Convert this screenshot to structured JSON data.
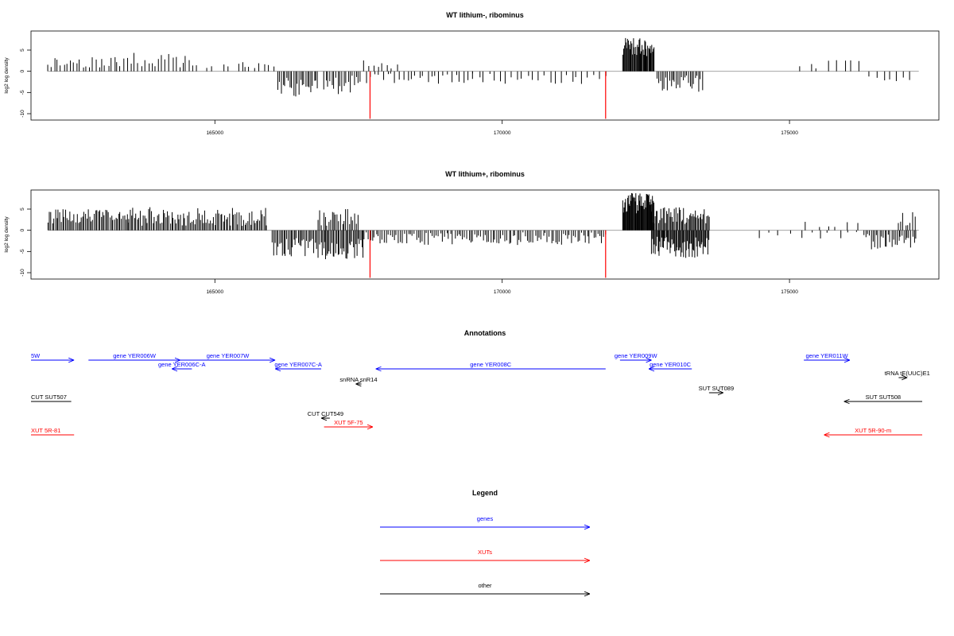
{
  "colors": {
    "genes": "#0000ff",
    "XUTs": "#ff0000",
    "other": "#000000",
    "bars": "#000000",
    "marker": "#ff0000",
    "baseline": "#999999"
  },
  "chart_data": [
    {
      "type": "bar",
      "title": "WT lithium-, ribominus",
      "ylabel": "log2 log density",
      "xlim": [
        161800,
        177600
      ],
      "ylim": [
        -11.5,
        9.5
      ],
      "xticks": [
        165000,
        170000,
        175000
      ],
      "xtick_labels": [
        "165000",
        "170000",
        "175000"
      ],
      "yticks": [
        -10,
        -5,
        0,
        5
      ],
      "ytick_labels": [
        "-10",
        "-5",
        "0",
        "5"
      ],
      "markers": [
        {
          "x": 167700,
          "value": -11.2,
          "color": "#ff0000"
        },
        {
          "x": 171800,
          "value": -11.2,
          "color": "#ff0000"
        }
      ],
      "series": [
        {
          "segments": [
            {
              "x0": 162100,
              "x1": 163300,
              "lo": 0.8,
              "hi": 3.5,
              "step": 55,
              "sign": 1,
              "seed": 11
            },
            {
              "x0": 163300,
              "x1": 164650,
              "lo": 0.8,
              "hi": 4.5,
              "step": 60,
              "sign": 1,
              "seed": 12
            },
            {
              "x0": 164700,
              "x1": 165600,
              "lo": 0.5,
              "hi": 2.5,
              "step": 140,
              "sign": 1,
              "seed": 13
            },
            {
              "x0": 165500,
              "x1": 166050,
              "lo": 0.5,
              "hi": 3.5,
              "step": 90,
              "sign": 1,
              "seed": 14
            },
            {
              "x0": 166100,
              "x1": 166800,
              "lo": 1.5,
              "hi": 6.0,
              "step": 30,
              "sign": -1,
              "seed": 15
            },
            {
              "x0": 166900,
              "x1": 167550,
              "lo": 1.0,
              "hi": 5.5,
              "step": 35,
              "sign": -1,
              "seed": 16
            },
            {
              "x0": 167600,
              "x1": 168200,
              "lo": 0.5,
              "hi": 3.0,
              "step": 80,
              "sign": 1,
              "seed": 17
            },
            {
              "x0": 167650,
              "x1": 169500,
              "lo": 0.5,
              "hi": 3.0,
              "step": 70,
              "sign": -1,
              "seed": 18
            },
            {
              "x0": 169500,
              "x1": 171800,
              "lo": 0.5,
              "hi": 3.0,
              "step": 95,
              "sign": -1,
              "seed": 19
            },
            {
              "x0": 172100,
              "x1": 172650,
              "lo": 3.5,
              "hi": 8.0,
              "step": 14,
              "sign": 1,
              "seed": 20
            },
            {
              "x0": 172700,
              "x1": 173500,
              "lo": 1.0,
              "hi": 5.0,
              "step": 30,
              "sign": -1,
              "seed": 21
            },
            {
              "x0": 175200,
              "x1": 176300,
              "lo": 0.5,
              "hi": 3.0,
              "step": 150,
              "sign": 1,
              "seed": 22
            },
            {
              "x0": 176400,
              "x1": 177150,
              "lo": 0.5,
              "hi": 2.5,
              "step": 120,
              "sign": -1,
              "seed": 23
            }
          ]
        }
      ]
    },
    {
      "type": "bar",
      "title": "WT lithium+, ribominus",
      "ylabel": "log2 log density",
      "xlim": [
        161800,
        177600
      ],
      "ylim": [
        -11.5,
        9.5
      ],
      "xticks": [
        165000,
        170000,
        175000
      ],
      "xtick_labels": [
        "165000",
        "170000",
        "175000"
      ],
      "yticks": [
        -10,
        -5,
        0,
        5
      ],
      "ytick_labels": [
        "-10",
        "-5",
        "0",
        "5"
      ],
      "markers": [
        {
          "x": 167700,
          "value": -11.2,
          "color": "#ff0000"
        },
        {
          "x": 171800,
          "value": -11.2,
          "color": "#ff0000"
        }
      ],
      "series": [
        {
          "segments": [
            {
              "x0": 162100,
              "x1": 163500,
              "lo": 1.5,
              "hi": 5.0,
              "step": 25,
              "sign": 1,
              "seed": 31
            },
            {
              "x0": 163500,
              "x1": 165900,
              "lo": 1.0,
              "hi": 5.5,
              "step": 25,
              "sign": 1,
              "seed": 32
            },
            {
              "x0": 166000,
              "x1": 166900,
              "lo": 1.5,
              "hi": 6.5,
              "step": 25,
              "sign": -1,
              "seed": 33
            },
            {
              "x0": 166800,
              "x1": 167500,
              "lo": 1.0,
              "hi": 5.0,
              "step": 30,
              "sign": 1,
              "seed": 34
            },
            {
              "x0": 166900,
              "x1": 167600,
              "lo": 2.0,
              "hi": 7.0,
              "step": 22,
              "sign": -1,
              "seed": 35
            },
            {
              "x0": 167600,
              "x1": 171800,
              "lo": 0.5,
              "hi": 3.5,
              "step": 35,
              "sign": -1,
              "seed": 36
            },
            {
              "x0": 172100,
              "x1": 172650,
              "lo": 4.0,
              "hi": 8.8,
              "step": 12,
              "sign": 1,
              "seed": 37
            },
            {
              "x0": 172600,
              "x1": 173600,
              "lo": 1.5,
              "hi": 5.5,
              "step": 20,
              "sign": 1,
              "seed": 38
            },
            {
              "x0": 172600,
              "x1": 173600,
              "lo": 1.5,
              "hi": 6.5,
              "step": 16,
              "sign": -1,
              "seed": 39
            },
            {
              "x0": 174500,
              "x1": 176200,
              "lo": 0.3,
              "hi": 2.0,
              "step": 170,
              "sign": -1,
              "seed": 40
            },
            {
              "x0": 175300,
              "x1": 176300,
              "lo": 0.5,
              "hi": 2.0,
              "step": 180,
              "sign": 1,
              "seed": 41
            },
            {
              "x0": 176300,
              "x1": 177200,
              "lo": 0.8,
              "hi": 4.5,
              "step": 30,
              "sign": -1,
              "seed": 42
            },
            {
              "x0": 176900,
              "x1": 177200,
              "lo": 1.0,
              "hi": 5.0,
              "step": 40,
              "sign": 1,
              "seed": 43
            }
          ]
        }
      ]
    }
  ],
  "annotations": {
    "title": "Annotations",
    "features": [
      {
        "label": "5W",
        "x0": 161800,
        "x1": 162550,
        "row": 0,
        "dir": "right",
        "type": "gene"
      },
      {
        "label": "gene YER006W",
        "x0": 162800,
        "x1": 164400,
        "row": 0,
        "dir": "right",
        "type": "gene"
      },
      {
        "label": "gene YER007W",
        "x0": 164400,
        "x1": 166050,
        "row": 0,
        "dir": "right",
        "type": "gene"
      },
      {
        "label": "gene YER006C-A",
        "x0": 164250,
        "x1": 164600,
        "row": 1,
        "dir": "left",
        "type": "gene"
      },
      {
        "label": "gene YER007C-A",
        "x0": 166050,
        "x1": 166850,
        "row": 1,
        "dir": "left",
        "type": "gene"
      },
      {
        "label": "gene YER008C",
        "x0": 167800,
        "x1": 171800,
        "row": 1,
        "dir": "left",
        "type": "gene"
      },
      {
        "label": "gene YER009W",
        "x0": 172050,
        "x1": 172600,
        "row": 0,
        "dir": "right",
        "type": "gene"
      },
      {
        "label": "gene YER010C",
        "x0": 172550,
        "x1": 173300,
        "row": 1,
        "dir": "left",
        "type": "gene"
      },
      {
        "label": "gene YER011W",
        "x0": 175250,
        "x1": 176050,
        "row": 0,
        "dir": "right",
        "type": "gene"
      },
      {
        "label": "tRNA tE(UUC)E1",
        "x0": 176900,
        "x1": 177050,
        "row": 2,
        "dir": "right",
        "type": "other"
      },
      {
        "label": "snRNA snR14",
        "x0": 167450,
        "x1": 167550,
        "row": 3,
        "dir": "left",
        "type": "other"
      },
      {
        "label": "SUT SUT089",
        "x0": 173600,
        "x1": 173850,
        "row": 4,
        "dir": "right",
        "type": "other"
      },
      {
        "label": "CUT SUT507",
        "x0": 161800,
        "x1": 162500,
        "row": 5,
        "dir": "none",
        "type": "other"
      },
      {
        "label": "SUT SUT508",
        "x0": 175950,
        "x1": 177500,
        "row": 5,
        "dir": "left",
        "type": "other"
      },
      {
        "label": "CUT CUT549",
        "x0": 166850,
        "x1": 167000,
        "row": 6,
        "dir": "left",
        "type": "other"
      },
      {
        "label": "XUT 5F-75",
        "x0": 166900,
        "x1": 167750,
        "row": 7,
        "dir": "right",
        "type": "XUT"
      },
      {
        "label": "XUT 5R-81",
        "x0": 161800,
        "x1": 162550,
        "row": 8,
        "dir": "none",
        "type": "XUT"
      },
      {
        "label": "XUT 5R-90-m",
        "x0": 175600,
        "x1": 177600,
        "row": 8,
        "dir": "left",
        "type": "XUT"
      }
    ]
  },
  "legend": {
    "title": "Legend",
    "items": [
      {
        "label": "genes",
        "type": "gene"
      },
      {
        "label": "XUTs",
        "type": "XUT"
      },
      {
        "label": "other",
        "type": "other"
      }
    ]
  }
}
